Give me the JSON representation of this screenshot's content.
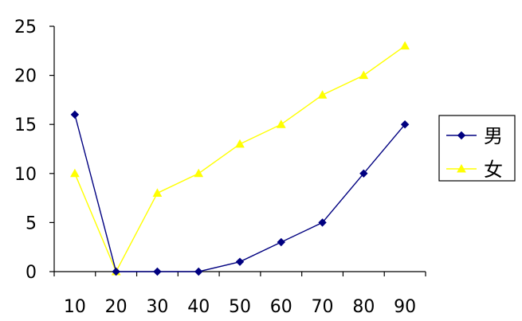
{
  "chart_data": {
    "type": "line",
    "x": [
      "10",
      "20",
      "30",
      "40",
      "50",
      "60",
      "70",
      "80",
      "90"
    ],
    "ylim": [
      0,
      25
    ],
    "yticks": [
      "0",
      "5",
      "10",
      "15",
      "20",
      "25"
    ],
    "grid": false,
    "legend_position": "right",
    "series": [
      {
        "name": "男",
        "values": [
          16,
          0,
          0,
          0,
          1,
          3,
          5,
          10,
          15
        ],
        "color": "#000080",
        "marker": "diamond"
      },
      {
        "name": "女",
        "values": [
          10,
          0,
          8,
          10,
          13,
          15,
          18,
          20,
          23
        ],
        "color": "#FFFF00",
        "marker": "triangle"
      }
    ]
  }
}
